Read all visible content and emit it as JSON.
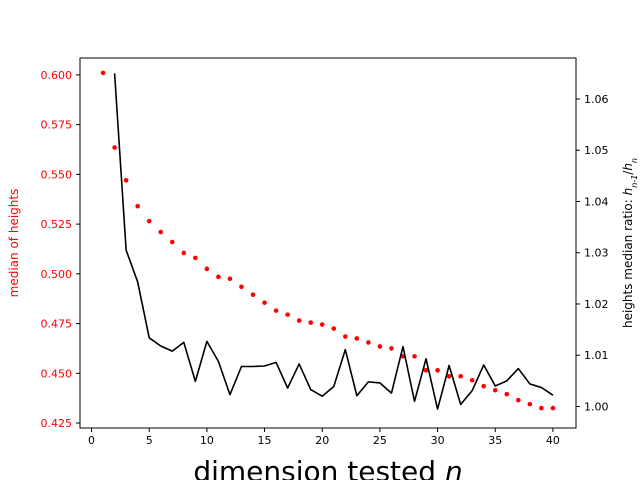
{
  "chart_data": {
    "type": "line",
    "xlabel": "dimension tested n",
    "x_ticks": [
      0,
      5,
      10,
      15,
      20,
      25,
      30,
      35,
      40
    ],
    "xlim": [
      -1.0,
      42.0
    ],
    "grid": false,
    "left_axis": {
      "label": "median of heights",
      "color": "#ff0000",
      "ylim": [
        0.4225,
        0.6085
      ],
      "ticks": [
        "0.425",
        "0.450",
        "0.475",
        "0.500",
        "0.525",
        "0.550",
        "0.575",
        "0.600"
      ]
    },
    "right_axis": {
      "label": "heights median ratio: h_{n-1}/h_n",
      "color": "#000000",
      "ylim": [
        0.9958,
        1.068
      ],
      "ticks": [
        "1.00",
        "1.01",
        "1.02",
        "1.03",
        "1.04",
        "1.05",
        "1.06"
      ]
    },
    "series": [
      {
        "axis": "left",
        "style": "dots",
        "color": "#ff0000",
        "x": [
          1,
          2,
          3,
          4,
          5,
          6,
          7,
          8,
          9,
          10,
          11,
          12,
          13,
          14,
          15,
          16,
          17,
          18,
          19,
          20,
          21,
          22,
          23,
          24,
          25,
          26,
          27,
          28,
          29,
          30,
          31,
          32,
          33,
          34,
          35,
          36,
          37,
          38,
          39,
          40
        ],
        "values": [
          0.601,
          0.5635,
          0.547,
          0.534,
          0.5265,
          0.521,
          0.516,
          0.5105,
          0.508,
          0.5025,
          0.4985,
          0.4975,
          0.4935,
          0.4895,
          0.4855,
          0.4815,
          0.4795,
          0.4765,
          0.4755,
          0.4745,
          0.4725,
          0.4685,
          0.4675,
          0.4655,
          0.4635,
          0.4625,
          0.4585,
          0.4585,
          0.4515,
          0.4515,
          0.4485,
          0.4485,
          0.4465,
          0.4435,
          0.4415,
          0.4395,
          0.4365,
          0.4345,
          0.4325,
          0.4325
        ]
      },
      {
        "axis": "right",
        "style": "line",
        "color": "#000000",
        "x": [
          2,
          3,
          4,
          5,
          6,
          7,
          8,
          9,
          10,
          11,
          12,
          13,
          14,
          15,
          16,
          17,
          18,
          19,
          20,
          21,
          22,
          23,
          24,
          25,
          26,
          27,
          28,
          29,
          30,
          31,
          32,
          33,
          34,
          35,
          36,
          37,
          38,
          39,
          40
        ],
        "values": [
          1.065,
          1.0305,
          1.0243,
          1.0134,
          1.0118,
          1.0108,
          1.0125,
          1.0049,
          1.0127,
          1.0088,
          1.0023,
          1.0078,
          1.0078,
          1.0079,
          1.0086,
          1.0036,
          1.0083,
          1.0033,
          1.002,
          1.0039,
          1.0111,
          1.0021,
          1.0048,
          1.0046,
          1.0026,
          1.0117,
          1.001,
          1.0093,
          0.9995,
          1.008,
          1.0004,
          1.0031,
          1.0081,
          1.004,
          1.005,
          1.0074,
          1.0044,
          1.0037,
          1.0022
        ]
      }
    ]
  }
}
